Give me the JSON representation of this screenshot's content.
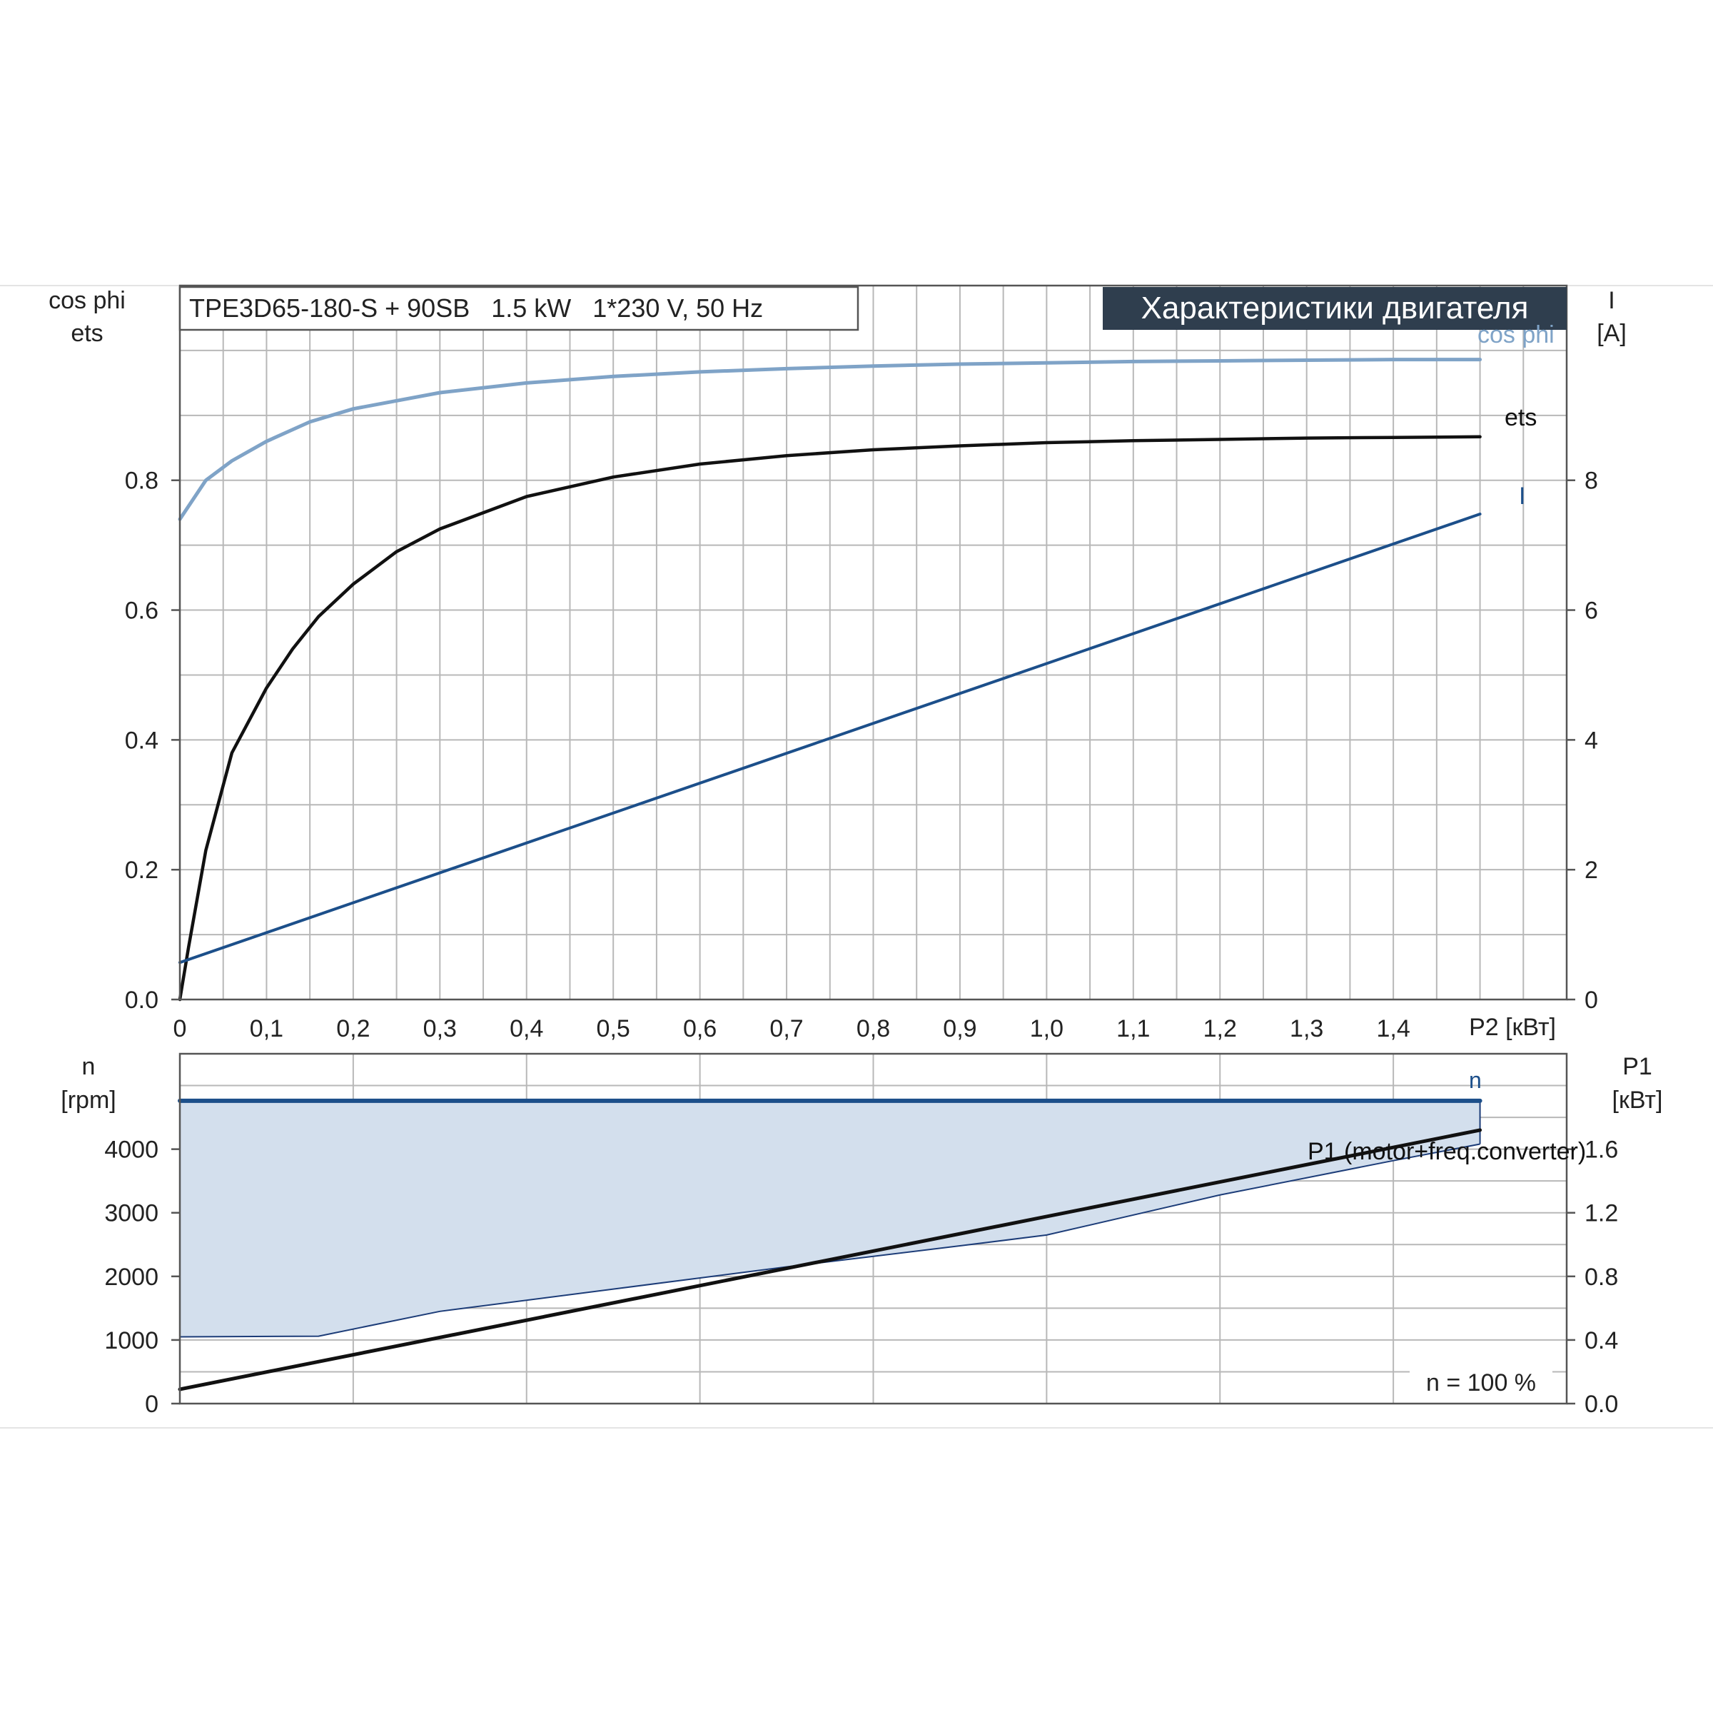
{
  "header": {
    "model_label": "TPE3D65-180-S + 90SB   1.5 kW   1*230 V, 50 Hz",
    "section_title": "Характеристики двигателя"
  },
  "footer": {
    "speed_note": "n = 100 %"
  },
  "colors": {
    "cosphi": "#7fa3c7",
    "ets": "#111111",
    "current": "#1c4f8a",
    "speed": "#1c4f8a",
    "p1": "#111111",
    "band_fill": "#d3dfed",
    "band_edge": "#1c3c78",
    "title_bg": "#2f3e4e"
  },
  "chart_data": [
    {
      "type": "line",
      "name": "top-panel",
      "xlabel": "P2 [кВт]",
      "x_ticks": [
        "0",
        "0,1",
        "0,2",
        "0,3",
        "0,4",
        "0,5",
        "0,6",
        "0,7",
        "0,8",
        "0,9",
        "1,0",
        "1,1",
        "1,2",
        "1,3",
        "1,4"
      ],
      "xlim": [
        0,
        1.6
      ],
      "left_axis": {
        "label_lines": [
          "cos phi",
          "ets"
        ],
        "ticks": [
          "0.0",
          "0.2",
          "0.4",
          "0.6",
          "0.8"
        ],
        "range": [
          0,
          1.1
        ]
      },
      "right_axis": {
        "label_lines": [
          "I",
          "[A]"
        ],
        "ticks": [
          "0",
          "2",
          "4",
          "6",
          "8"
        ],
        "range": [
          0,
          11
        ]
      },
      "series": [
        {
          "name": "cos phi",
          "axis": "left",
          "x": [
            0,
            0.03,
            0.06,
            0.1,
            0.15,
            0.2,
            0.3,
            0.4,
            0.5,
            0.6,
            0.7,
            0.8,
            0.9,
            1.0,
            1.1,
            1.2,
            1.3,
            1.4,
            1.5
          ],
          "y": [
            0.74,
            0.8,
            0.83,
            0.86,
            0.89,
            0.91,
            0.935,
            0.95,
            0.96,
            0.967,
            0.972,
            0.976,
            0.979,
            0.981,
            0.983,
            0.984,
            0.985,
            0.986,
            0.986
          ]
        },
        {
          "name": "ets",
          "axis": "left",
          "x": [
            0,
            0.01,
            0.03,
            0.06,
            0.1,
            0.13,
            0.16,
            0.2,
            0.25,
            0.3,
            0.4,
            0.5,
            0.6,
            0.7,
            0.8,
            0.9,
            1.0,
            1.1,
            1.2,
            1.3,
            1.4,
            1.5
          ],
          "y": [
            0,
            0.08,
            0.23,
            0.38,
            0.48,
            0.54,
            0.59,
            0.64,
            0.69,
            0.725,
            0.775,
            0.805,
            0.825,
            0.838,
            0.847,
            0.853,
            0.858,
            0.861,
            0.863,
            0.865,
            0.866,
            0.867
          ]
        },
        {
          "name": "I",
          "axis": "right",
          "x": [
            0,
            1.5
          ],
          "y": [
            0.57,
            7.48
          ]
        }
      ]
    },
    {
      "type": "line",
      "name": "bottom-panel",
      "xlim": [
        0,
        1.6
      ],
      "left_axis": {
        "label_lines": [
          "n",
          "[rpm]"
        ],
        "ticks": [
          "0",
          "1000",
          "2000",
          "3000",
          "4000"
        ],
        "range": [
          0,
          5500
        ]
      },
      "right_axis": {
        "label_lines": [
          "P1",
          "[кВт]"
        ],
        "ticks": [
          "0.0",
          "0.4",
          "0.8",
          "1.2",
          "1.6"
        ],
        "range": [
          0,
          2.2
        ]
      },
      "operating_band": {
        "upper_rpm": 4760,
        "lower_x": [
          0,
          0.16,
          0.3,
          0.5,
          0.7,
          0.9,
          1.0,
          1.2,
          1.4,
          1.5
        ],
        "lower_rpm": [
          1050,
          1060,
          1450,
          1800,
          2150,
          2480,
          2650,
          3280,
          3820,
          4080
        ]
      },
      "series": [
        {
          "name": "n",
          "axis": "left",
          "x": [
            0,
            1.5
          ],
          "y": [
            4760,
            4760
          ]
        },
        {
          "name": "P1 (motor+freq.converter)",
          "axis": "right",
          "x": [
            0,
            1.5
          ],
          "y": [
            0.09,
            1.72
          ]
        }
      ]
    }
  ]
}
